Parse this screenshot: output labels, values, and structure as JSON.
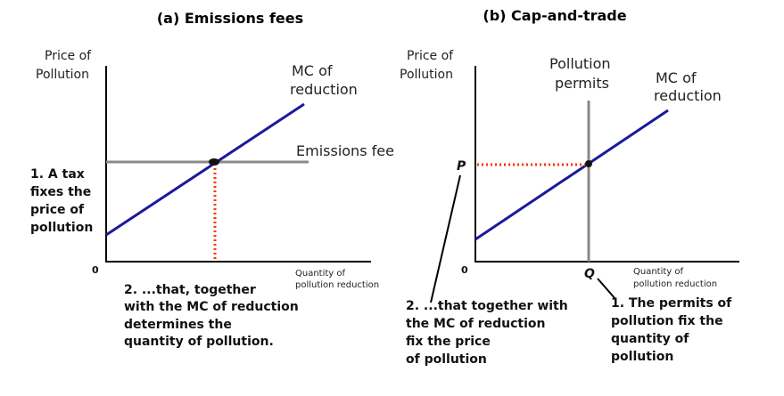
{
  "panels": [
    {
      "title": "(a) Emissions fees",
      "y_axis_label": [
        "Price of",
        "Pollution"
      ],
      "x_axis_label": [
        "Quantity of",
        "pollution reduction"
      ],
      "origin": "0",
      "curve_label": [
        "MC of",
        "reduction"
      ],
      "line_label": "Emissions fee",
      "note_left": [
        "1. A tax",
        "fixes the",
        "price of",
        "pollution"
      ],
      "note_bottom": [
        "2. ...that, together",
        "with the MC of reduction",
        "determines the",
        "quantity of pollution."
      ]
    },
    {
      "title": "(b) Cap-and-trade",
      "y_axis_label": [
        "Price of",
        "Pollution"
      ],
      "x_axis_label": [
        "Quantity of",
        "pollution reduction"
      ],
      "origin": "0",
      "curve_label": [
        "MC of",
        "reduction"
      ],
      "line_label": [
        "Pollution",
        "permits"
      ],
      "price_marker": "P",
      "quantity_marker": "Q",
      "note_left": [
        "2. ...that together with",
        "the MC of reduction",
        "fix the price",
        "of pollution"
      ],
      "note_right": [
        "1. The permits of",
        "pollution fix the",
        "quantity of",
        "pollution"
      ]
    }
  ],
  "colors": {
    "mc_line": "#1a1a9a",
    "policy_line": "#8a8a8a",
    "dotted": "#ff3300",
    "axis": "#000000"
  }
}
